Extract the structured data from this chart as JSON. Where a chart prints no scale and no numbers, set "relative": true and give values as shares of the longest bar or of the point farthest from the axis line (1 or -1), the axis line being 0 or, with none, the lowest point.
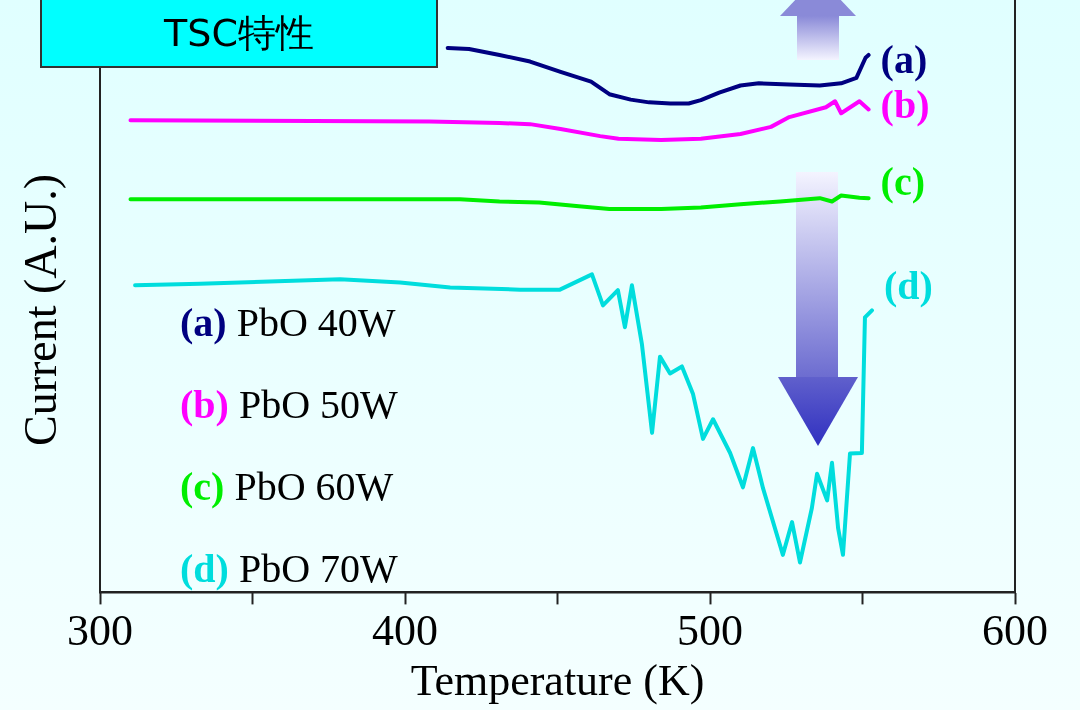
{
  "chart_data": {
    "type": "line",
    "title": "TSC特性",
    "xlabel": "Temperature (K)",
    "ylabel": "Current (A.U.)",
    "relative": true,
    "xlim": [
      300,
      600
    ],
    "xticks": [
      300,
      {
        "value": 350,
        "label": null
      },
      400,
      {
        "value": 450,
        "label": null
      },
      500,
      {
        "value": 550,
        "label": null
      },
      600
    ],
    "grid": false,
    "legend": "bottom left",
    "series": [
      {
        "name": "(a) PbO 40W",
        "color": "#000080",
        "x": [
          414,
          421,
          431,
          441,
          451,
          461,
          467,
          474,
          480,
          487,
          493,
          497,
          503,
          510,
          516,
          526,
          536,
          543,
          548,
          551,
          552
        ],
        "values": [
          1.0,
          0.998,
          0.987,
          0.975,
          0.956,
          0.938,
          0.915,
          0.905,
          0.9,
          0.898,
          0.898,
          0.904,
          0.918,
          0.931,
          0.935,
          0.933,
          0.931,
          0.935,
          0.945,
          0.982,
          0.987
        ]
      },
      {
        "name": "(b) PbO 50W",
        "color": "#ff00ff",
        "x": [
          310,
          408,
          431,
          441,
          451,
          464,
          470,
          484,
          497,
          510,
          520,
          526,
          538,
          541,
          543,
          549,
          552
        ],
        "values": [
          0.867,
          0.865,
          0.862,
          0.86,
          0.851,
          0.838,
          0.833,
          0.831,
          0.833,
          0.842,
          0.855,
          0.873,
          0.891,
          0.902,
          0.88,
          0.902,
          0.887
        ]
      },
      {
        "name": "(c) PbO 60W",
        "color": "#00ee00",
        "x": [
          310,
          418,
          431,
          444,
          457,
          467,
          484,
          497,
          510,
          523,
          536,
          540,
          543,
          549,
          552
        ],
        "values": [
          0.722,
          0.722,
          0.718,
          0.716,
          0.709,
          0.704,
          0.704,
          0.707,
          0.713,
          0.718,
          0.724,
          0.718,
          0.729,
          0.725,
          0.724
        ]
      },
      {
        "name": "(d) PbO 70W",
        "color": "#00dddd",
        "x": [
          311.5,
          332.8,
          378.7,
          398.4,
          414.8,
          437.7,
          450.8,
          461.3,
          464.9,
          469.8,
          472.1,
          474.4,
          477.7,
          481,
          483.6,
          486.9,
          490.8,
          494.4,
          497.7,
          501,
          506.6,
          510.8,
          514.1,
          517.4,
          523.9,
          526.9,
          529.5,
          533.4,
          535.1,
          538.4,
          540,
          542,
          543.6,
          545.9,
          549.8,
          550.8,
          553.1
        ],
        "values": [
          0.564,
          0.567,
          0.575,
          0.569,
          0.56,
          0.556,
          0.556,
          0.584,
          0.527,
          0.555,
          0.487,
          0.564,
          0.455,
          0.293,
          0.433,
          0.402,
          0.415,
          0.365,
          0.282,
          0.318,
          0.256,
          0.193,
          0.265,
          0.191,
          0.069,
          0.129,
          0.055,
          0.155,
          0.218,
          0.169,
          0.238,
          0.118,
          0.069,
          0.255,
          0.256,
          0.505,
          0.518
        ]
      }
    ],
    "annotations": [
      "(a)",
      "(b)",
      "(c)",
      "(d)"
    ]
  }
}
